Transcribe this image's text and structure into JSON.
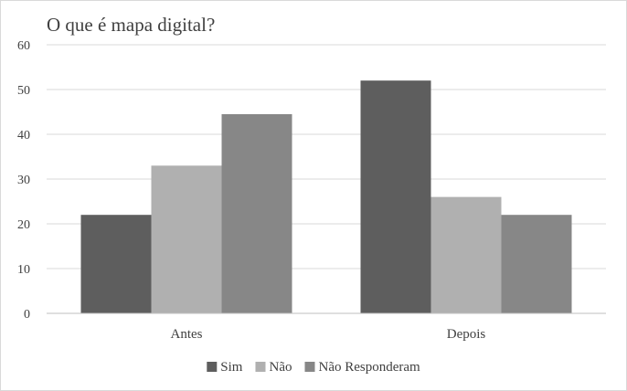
{
  "chart_data": {
    "type": "bar",
    "title": "O que é mapa digital?",
    "categories": [
      "Antes",
      "Depois"
    ],
    "series": [
      {
        "name": "Sim",
        "values": [
          22,
          52
        ],
        "color": "#5e5e5e"
      },
      {
        "name": "Não",
        "values": [
          33,
          26
        ],
        "color": "#b0b0b0"
      },
      {
        "name": "Não Responderam",
        "values": [
          44.5,
          22
        ],
        "color": "#878787"
      }
    ],
    "ylim": [
      0,
      60
    ],
    "yticks": [
      0,
      10,
      20,
      30,
      40,
      50,
      60
    ],
    "xlabel": "",
    "ylabel": "",
    "grid": true,
    "legend": "bottom",
    "colors": {
      "grid": "#d9d9d9",
      "axis": "#bfbfbf",
      "text": "#404040"
    }
  }
}
